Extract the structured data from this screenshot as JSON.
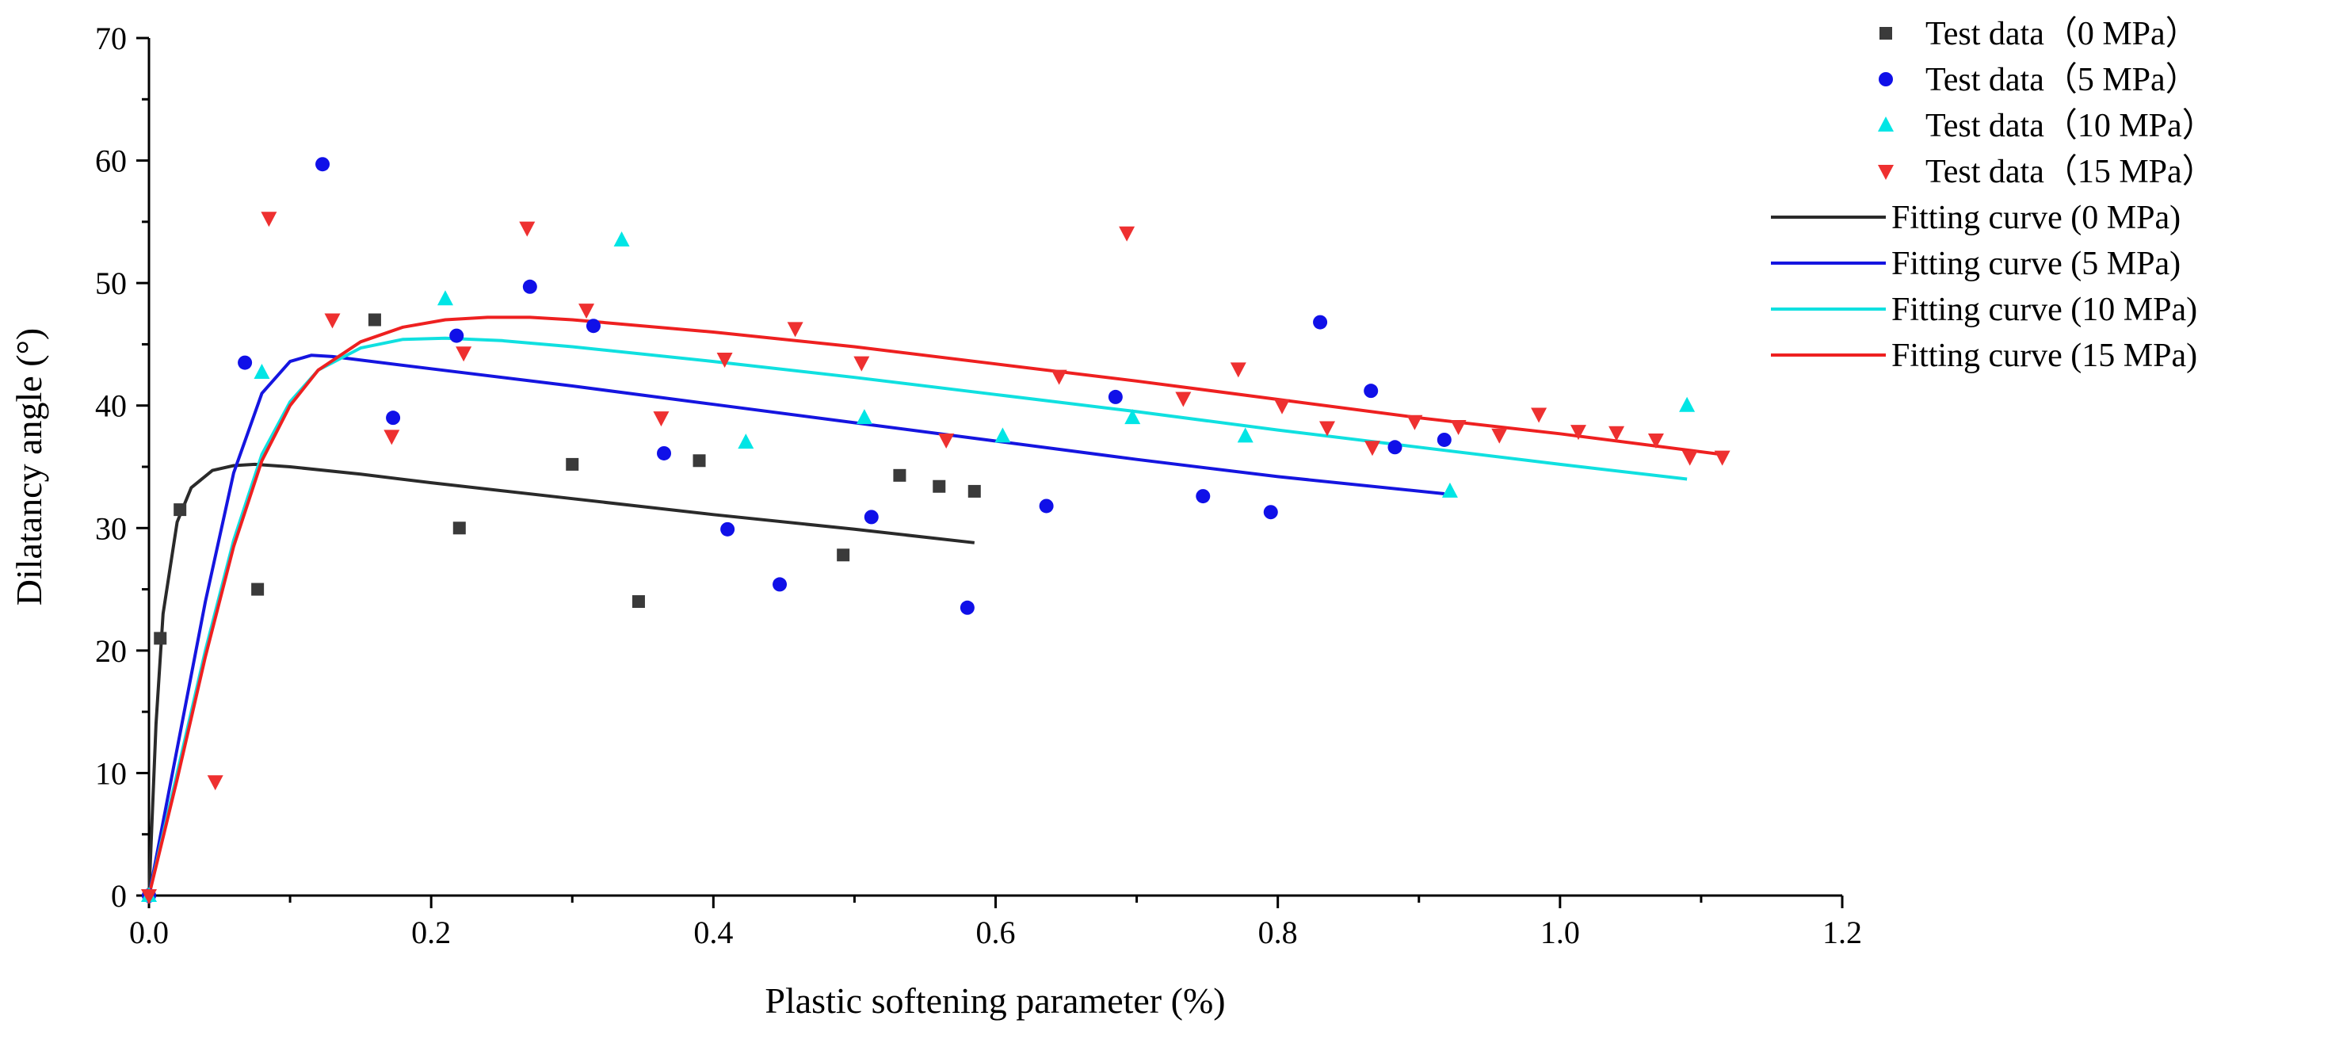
{
  "chart_data": {
    "type": "scatter",
    "title": "",
    "xlabel": "Plastic softening parameter (%)",
    "ylabel": "Dilatancy angle (°)",
    "xlim": [
      0,
      1.2
    ],
    "ylim": [
      0,
      70
    ],
    "xticks": [
      0.0,
      0.2,
      0.4,
      0.6,
      0.8,
      1.0,
      1.2
    ],
    "xtick_labels": [
      "0.0",
      "0.2",
      "0.4",
      "0.6",
      "0.8",
      "1.0",
      "1.2"
    ],
    "yticks": [
      0,
      10,
      20,
      30,
      40,
      50,
      60,
      70
    ],
    "ytick_labels": [
      "0",
      "10",
      "20",
      "30",
      "40",
      "50",
      "60",
      "70"
    ],
    "grid": false,
    "legend_position": "top-right, outside plot",
    "scatter_series": [
      {
        "name": "Test data（0 MPa）",
        "marker": "square",
        "color": "#3a3a3a",
        "points": [
          [
            0.0,
            0.0
          ],
          [
            0.008,
            21.0
          ],
          [
            0.022,
            31.5
          ],
          [
            0.077,
            25.0
          ],
          [
            0.16,
            47.0
          ],
          [
            0.22,
            30.0
          ],
          [
            0.3,
            35.2
          ],
          [
            0.347,
            24.0
          ],
          [
            0.39,
            35.5
          ],
          [
            0.492,
            27.8
          ],
          [
            0.532,
            34.3
          ],
          [
            0.56,
            33.4
          ],
          [
            0.585,
            33.0
          ]
        ]
      },
      {
        "name": "Test data（5 MPa）",
        "marker": "circle",
        "color": "#1010e8",
        "points": [
          [
            0.0,
            0.0
          ],
          [
            0.068,
            43.5
          ],
          [
            0.123,
            59.7
          ],
          [
            0.173,
            39.0
          ],
          [
            0.218,
            45.7
          ],
          [
            0.27,
            49.7
          ],
          [
            0.315,
            46.5
          ],
          [
            0.365,
            36.1
          ],
          [
            0.41,
            29.9
          ],
          [
            0.447,
            25.4
          ],
          [
            0.512,
            30.9
          ],
          [
            0.58,
            23.5
          ],
          [
            0.636,
            31.8
          ],
          [
            0.685,
            40.7
          ],
          [
            0.747,
            32.6
          ],
          [
            0.795,
            31.3
          ],
          [
            0.83,
            46.8
          ],
          [
            0.866,
            41.2
          ],
          [
            0.883,
            36.6
          ],
          [
            0.918,
            37.2
          ]
        ]
      },
      {
        "name": "Test data（10 MPa）",
        "marker": "triangle-up",
        "color": "#00e5e5",
        "points": [
          [
            0.0,
            0.0
          ],
          [
            0.08,
            42.7
          ],
          [
            0.21,
            48.7
          ],
          [
            0.335,
            53.5
          ],
          [
            0.423,
            37.0
          ],
          [
            0.507,
            39.0
          ],
          [
            0.605,
            37.5
          ],
          [
            0.697,
            39.0
          ],
          [
            0.777,
            37.5
          ],
          [
            0.922,
            33.0
          ],
          [
            1.09,
            40.0
          ]
        ]
      },
      {
        "name": "Test data（15 MPa）",
        "marker": "triangle-down",
        "color": "#ee3030",
        "points": [
          [
            0.0,
            0.0
          ],
          [
            0.047,
            9.3
          ],
          [
            0.085,
            55.3
          ],
          [
            0.13,
            47.0
          ],
          [
            0.172,
            37.5
          ],
          [
            0.223,
            44.3
          ],
          [
            0.268,
            54.5
          ],
          [
            0.31,
            47.8
          ],
          [
            0.363,
            39.0
          ],
          [
            0.408,
            43.8
          ],
          [
            0.458,
            46.3
          ],
          [
            0.505,
            43.5
          ],
          [
            0.565,
            37.2
          ],
          [
            0.645,
            42.4
          ],
          [
            0.693,
            54.1
          ],
          [
            0.733,
            40.6
          ],
          [
            0.772,
            43.0
          ],
          [
            0.803,
            40.0
          ],
          [
            0.835,
            38.2
          ],
          [
            0.867,
            36.6
          ],
          [
            0.897,
            38.7
          ],
          [
            0.928,
            38.3
          ],
          [
            0.957,
            37.6
          ],
          [
            0.985,
            39.3
          ],
          [
            1.013,
            37.9
          ],
          [
            1.04,
            37.8
          ],
          [
            1.068,
            37.2
          ],
          [
            1.092,
            35.8
          ],
          [
            1.115,
            35.8
          ]
        ]
      }
    ],
    "line_series": [
      {
        "name": "Fitting curve (0 MPa)",
        "color": "#2a2a2a",
        "points": [
          [
            0.0,
            0.0
          ],
          [
            0.005,
            14.0
          ],
          [
            0.01,
            23.0
          ],
          [
            0.02,
            30.5
          ],
          [
            0.03,
            33.3
          ],
          [
            0.045,
            34.7
          ],
          [
            0.06,
            35.1
          ],
          [
            0.075,
            35.2
          ],
          [
            0.1,
            35.0
          ],
          [
            0.15,
            34.4
          ],
          [
            0.2,
            33.7
          ],
          [
            0.3,
            32.4
          ],
          [
            0.4,
            31.1
          ],
          [
            0.5,
            29.9
          ],
          [
            0.585,
            28.8
          ]
        ]
      },
      {
        "name": "Fitting curve (5 MPa)",
        "color": "#1515e0",
        "points": [
          [
            0.0,
            0.0
          ],
          [
            0.02,
            12.0
          ],
          [
            0.04,
            24.0
          ],
          [
            0.06,
            34.5
          ],
          [
            0.08,
            41.0
          ],
          [
            0.1,
            43.6
          ],
          [
            0.115,
            44.1
          ],
          [
            0.13,
            44.0
          ],
          [
            0.2,
            43.0
          ],
          [
            0.3,
            41.6
          ],
          [
            0.4,
            40.1
          ],
          [
            0.5,
            38.6
          ],
          [
            0.6,
            37.1
          ],
          [
            0.7,
            35.6
          ],
          [
            0.8,
            34.2
          ],
          [
            0.918,
            32.8
          ]
        ]
      },
      {
        "name": "Fitting curve (10 MPa)",
        "color": "#10e0e0",
        "points": [
          [
            0.0,
            0.0
          ],
          [
            0.02,
            10.0
          ],
          [
            0.04,
            20.0
          ],
          [
            0.06,
            29.0
          ],
          [
            0.08,
            36.0
          ],
          [
            0.1,
            40.3
          ],
          [
            0.12,
            42.9
          ],
          [
            0.15,
            44.7
          ],
          [
            0.18,
            45.4
          ],
          [
            0.21,
            45.5
          ],
          [
            0.25,
            45.3
          ],
          [
            0.3,
            44.8
          ],
          [
            0.4,
            43.6
          ],
          [
            0.5,
            42.3
          ],
          [
            0.6,
            40.9
          ],
          [
            0.7,
            39.5
          ],
          [
            0.8,
            38.0
          ],
          [
            0.9,
            36.6
          ],
          [
            1.0,
            35.2
          ],
          [
            1.09,
            34.0
          ]
        ]
      },
      {
        "name": "Fitting curve (15 MPa)",
        "color": "#ee2020",
        "points": [
          [
            0.0,
            0.0
          ],
          [
            0.02,
            9.5
          ],
          [
            0.04,
            19.5
          ],
          [
            0.06,
            28.5
          ],
          [
            0.08,
            35.5
          ],
          [
            0.1,
            40.0
          ],
          [
            0.12,
            42.9
          ],
          [
            0.15,
            45.2
          ],
          [
            0.18,
            46.4
          ],
          [
            0.21,
            47.0
          ],
          [
            0.24,
            47.2
          ],
          [
            0.27,
            47.2
          ],
          [
            0.3,
            47.0
          ],
          [
            0.4,
            46.0
          ],
          [
            0.5,
            44.8
          ],
          [
            0.6,
            43.4
          ],
          [
            0.7,
            42.0
          ],
          [
            0.8,
            40.5
          ],
          [
            0.9,
            39.0
          ],
          [
            1.0,
            37.7
          ],
          [
            1.115,
            36.0
          ]
        ]
      }
    ]
  }
}
